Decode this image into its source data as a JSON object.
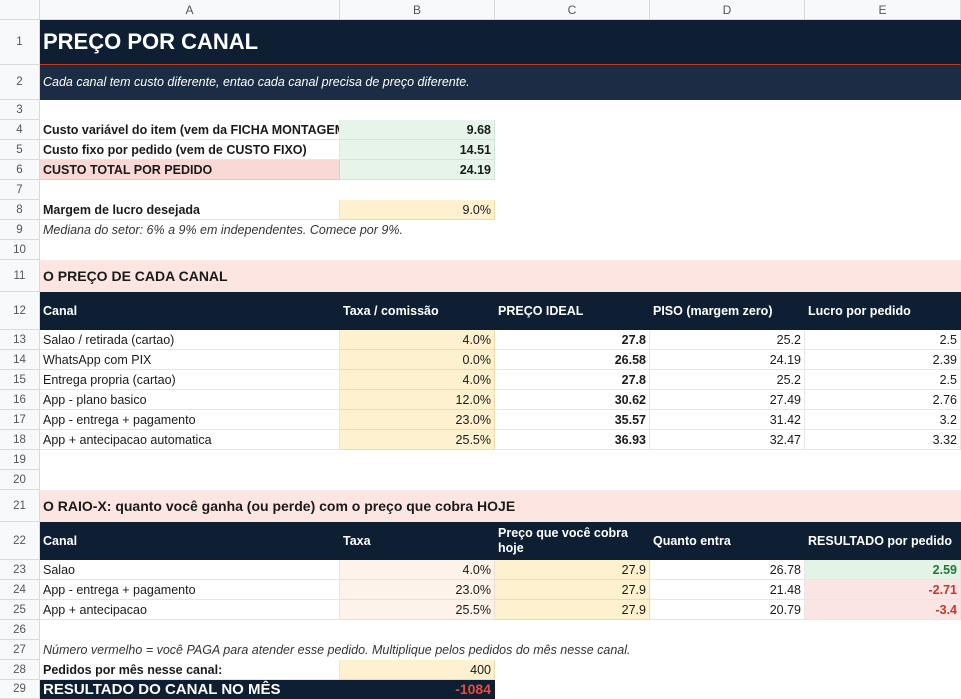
{
  "columns": [
    "A",
    "B",
    "C",
    "D",
    "E"
  ],
  "rows": [
    "1",
    "2",
    "3",
    "4",
    "5",
    "6",
    "7",
    "8",
    "9",
    "10",
    "11",
    "12",
    "13",
    "14",
    "15",
    "16",
    "17",
    "18",
    "19",
    "20",
    "21",
    "22",
    "23",
    "24",
    "25",
    "26",
    "27",
    "28",
    "29"
  ],
  "title": "PREÇO POR CANAL",
  "subtitle": "Cada canal tem custo diferente, entao cada canal precisa de preço diferente.",
  "costs": {
    "variable_label": "Custo variável do item (vem da FICHA MONTAGEM)",
    "variable_value": "9.68",
    "fixed_label": "Custo fixo por pedido (vem de CUSTO FIXO)",
    "fixed_value": "14.51",
    "total_label": "CUSTO TOTAL POR PEDIDO",
    "total_value": "24.19"
  },
  "margin": {
    "label": "Margem de lucro desejada",
    "value": "9.0%",
    "note": "Mediana do setor: 6% a 9% em independentes. Comece por 9%."
  },
  "section1": {
    "title": "O PREÇO DE CADA CANAL",
    "headers": [
      "Canal",
      "Taxa / comissão",
      "PREÇO IDEAL",
      "PISO (margem zero)",
      "Lucro por pedido"
    ],
    "rows": [
      [
        "Salao / retirada (cartao)",
        "4.0%",
        "27.8",
        "25.2",
        "2.5"
      ],
      [
        "WhatsApp com PIX",
        "0.0%",
        "26.58",
        "24.19",
        "2.39"
      ],
      [
        "Entrega propria (cartao)",
        "4.0%",
        "27.8",
        "25.2",
        "2.5"
      ],
      [
        "App - plano basico",
        "12.0%",
        "30.62",
        "27.49",
        "2.76"
      ],
      [
        "App - entrega + pagamento",
        "23.0%",
        "35.57",
        "31.42",
        "3.2"
      ],
      [
        "App + antecipacao automatica",
        "25.5%",
        "36.93",
        "32.47",
        "3.32"
      ]
    ]
  },
  "section2": {
    "title": "O RAIO-X: quanto você ganha (ou perde) com o preço que cobra HOJE",
    "headers": [
      "Canal",
      "Taxa",
      "Preço que você cobra hoje",
      "Quanto entra",
      "RESULTADO por pedido"
    ],
    "rows": [
      [
        "Salao",
        "4.0%",
        "27.9",
        "26.78",
        "2.59"
      ],
      [
        "App - entrega + pagamento",
        "23.0%",
        "27.9",
        "21.48",
        "-2.71"
      ],
      [
        "App + antecipacao",
        "25.5%",
        "27.9",
        "20.79",
        "-3.4"
      ]
    ],
    "note": "Número vermelho = você PAGA para atender esse pedido. Multiplique pelos pedidos do mês nesse canal."
  },
  "monthly": {
    "orders_label": "Pedidos por mês nesse canal:",
    "orders_value": "400",
    "result_label": "RESULTADO DO CANAL NO MÊS",
    "result_value": "-1084"
  },
  "colors": {
    "header_dark": "#0f1f33",
    "input_yellow": "#fdf1cf",
    "total_pink": "#f9d9d6",
    "section_peach": "#fde6e2",
    "positive_green": "#1e7a3c",
    "negative_red": "#c0392b"
  }
}
